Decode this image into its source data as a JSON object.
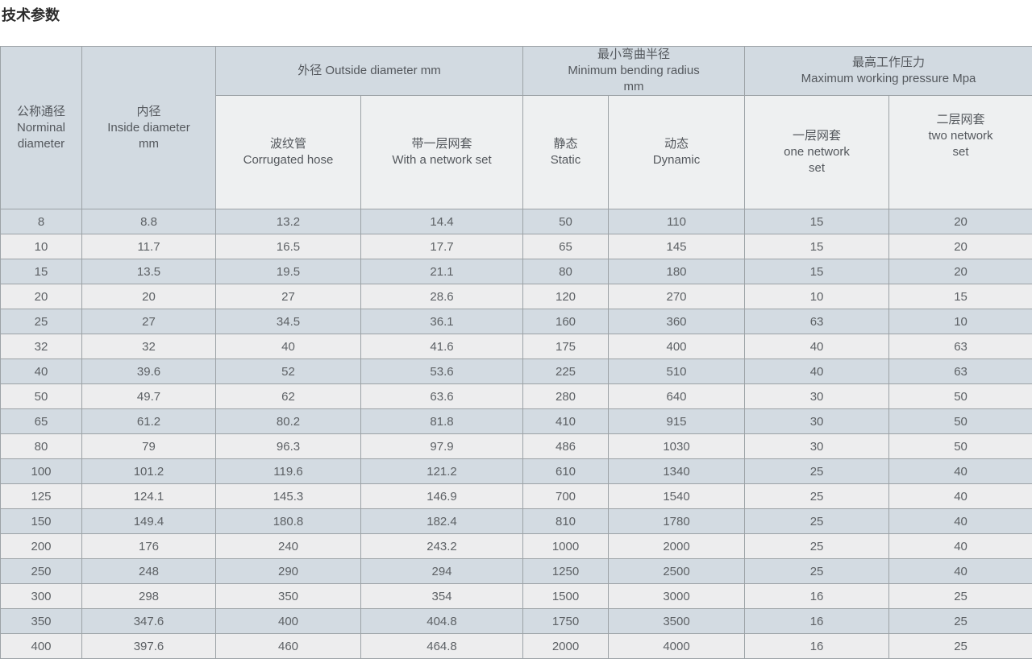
{
  "page": {
    "title": "技术参数"
  },
  "colors": {
    "header_blue_bg": "#d2dae1",
    "subheader_gray_bg": "#eef0f1",
    "row_blue_bg": "#d3dbe2",
    "row_light_bg": "#ededee",
    "border": "#9ca2a6",
    "cell_text": "#5d6165",
    "title_text": "#2b2b2b"
  },
  "table": {
    "headers": {
      "nominal_diameter": "公称通径\nNorminal\ndiameter",
      "inside_diameter": "内径\nInside diameter\nmm",
      "outside_diameter_group": "外径 Outside diameter mm",
      "min_bending_radius_group": "最小弯曲半径\nMinimum bending radius\nmm",
      "max_working_pressure_group": "最高工作压力\nMaximum working pressure Mpa",
      "corrugated_hose": "波纹管\nCorrugated hose",
      "with_network_set": "带一层网套\nWith a network set",
      "static": "静态\nStatic",
      "dynamic": "动态\nDynamic",
      "one_network_set": "一层网套\none network\nset",
      "two_network_set": "二层网套\ntwo network\nset"
    },
    "rows": [
      [
        "8",
        "8.8",
        "13.2",
        "14.4",
        "50",
        "110",
        "15",
        "20"
      ],
      [
        "10",
        "11.7",
        "16.5",
        "17.7",
        "65",
        "145",
        "15",
        "20"
      ],
      [
        "15",
        "13.5",
        "19.5",
        "21.1",
        "80",
        "180",
        "15",
        "20"
      ],
      [
        "20",
        "20",
        "27",
        "28.6",
        "120",
        "270",
        "10",
        "15"
      ],
      [
        "25",
        "27",
        "34.5",
        "36.1",
        "160",
        "360",
        "63",
        "10"
      ],
      [
        "32",
        "32",
        "40",
        "41.6",
        "175",
        "400",
        "40",
        "63"
      ],
      [
        "40",
        "39.6",
        "52",
        "53.6",
        "225",
        "510",
        "40",
        "63"
      ],
      [
        "50",
        "49.7",
        "62",
        "63.6",
        "280",
        "640",
        "30",
        "50"
      ],
      [
        "65",
        "61.2",
        "80.2",
        "81.8",
        "410",
        "915",
        "30",
        "50"
      ],
      [
        "80",
        "79",
        "96.3",
        "97.9",
        "486",
        "1030",
        "30",
        "50"
      ],
      [
        "100",
        "101.2",
        "119.6",
        "121.2",
        "610",
        "1340",
        "25",
        "40"
      ],
      [
        "125",
        "124.1",
        "145.3",
        "146.9",
        "700",
        "1540",
        "25",
        "40"
      ],
      [
        "150",
        "149.4",
        "180.8",
        "182.4",
        "810",
        "1780",
        "25",
        "40"
      ],
      [
        "200",
        "176",
        "240",
        "243.2",
        "1000",
        "2000",
        "25",
        "40"
      ],
      [
        "250",
        "248",
        "290",
        "294",
        "1250",
        "2500",
        "25",
        "40"
      ],
      [
        "300",
        "298",
        "350",
        "354",
        "1500",
        "3000",
        "16",
        "25"
      ],
      [
        "350",
        "347.6",
        "400",
        "404.8",
        "1750",
        "3500",
        "16",
        "25"
      ],
      [
        "400",
        "397.6",
        "460",
        "464.8",
        "2000",
        "4000",
        "16",
        "25"
      ]
    ]
  }
}
